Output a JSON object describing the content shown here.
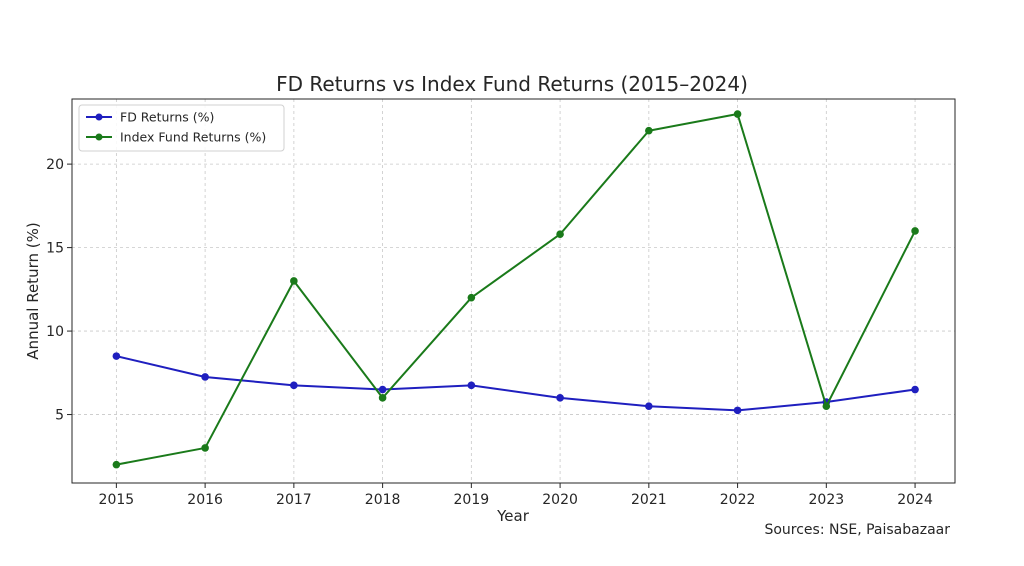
{
  "chart_data": {
    "type": "line",
    "title": "FD Returns vs Index Fund Returns (2015–2024)",
    "xlabel": "Year",
    "ylabel": "Annual Return (%)",
    "categories": [
      "2015",
      "2016",
      "2017",
      "2018",
      "2019",
      "2020",
      "2021",
      "2022",
      "2023",
      "2024"
    ],
    "xlim": [
      2014.5,
      2024.45
    ],
    "ylim": [
      0.9,
      23.9
    ],
    "yticks": [
      5,
      10,
      15,
      20
    ],
    "grid": true,
    "legend_position": "upper-left",
    "series": [
      {
        "name": "FD Returns (%)",
        "color": "#1f1fbf",
        "values": [
          8.5,
          7.25,
          6.75,
          6.5,
          6.75,
          6.0,
          5.5,
          5.25,
          5.75,
          6.5
        ]
      },
      {
        "name": "Index Fund Returns (%)",
        "color": "#1a7a1a",
        "values": [
          2.0,
          3.0,
          13.0,
          6.0,
          12.0,
          15.8,
          22.0,
          23.0,
          5.5,
          16.0
        ]
      }
    ],
    "annotation": "Sources: NSE, Paisabazaar"
  }
}
